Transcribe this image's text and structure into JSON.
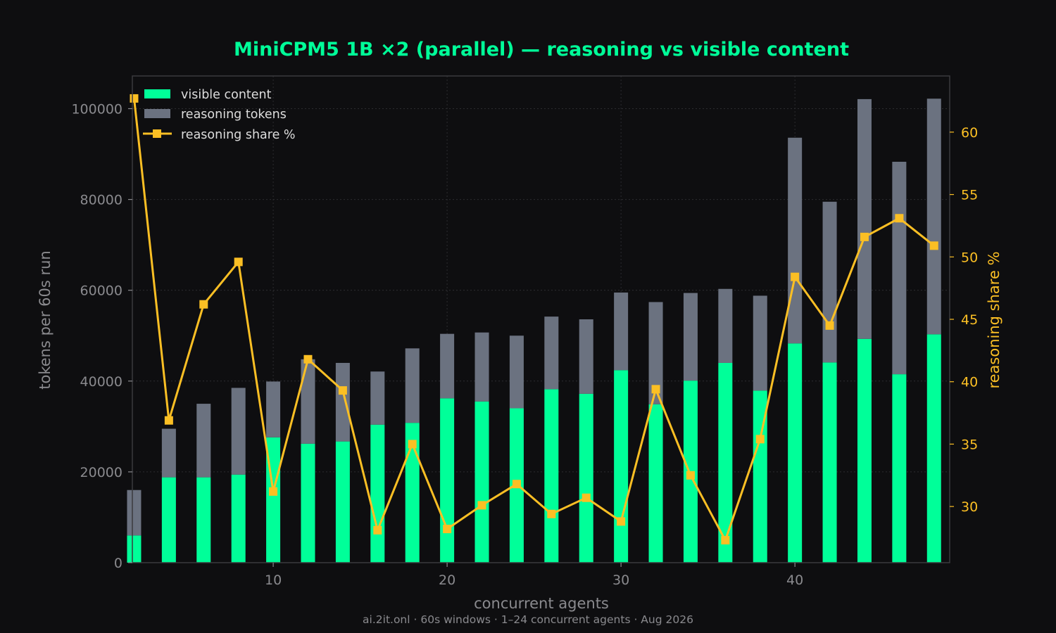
{
  "colors": {
    "background": "#0e0e10",
    "plot_border": "#3a3a3e",
    "grid": "#2c2c30",
    "visible": "#00ff99",
    "reasoning": "#6b7280",
    "share_line": "#fbbf24",
    "title": "#00ff99",
    "left_axis_text": "#8a8a8e",
    "right_axis_text": "#fbbf24",
    "legend_text": "#dddddd",
    "footnote": "#8a8a8e"
  },
  "chart_data": {
    "type": "bar",
    "title": "MiniCPM5 1B ×2 (parallel) — reasoning vs visible content",
    "xlabel": "concurrent agents",
    "ylabel": "tokens per 60s run",
    "y2label": "reasoning share %",
    "footnote": "ai.2it.onl · 60s windows · 1–24 concurrent agents · Aug 2026",
    "x": [
      2,
      4,
      6,
      8,
      10,
      12,
      14,
      16,
      18,
      20,
      22,
      24,
      26,
      28,
      30,
      32,
      34,
      36,
      38,
      40,
      42,
      44,
      46,
      48
    ],
    "xlim": [
      1.9,
      48.9
    ],
    "ylim": [
      0,
      107200
    ],
    "y2lim": [
      25.5,
      64.5
    ],
    "x_ticks": [
      10,
      20,
      30,
      40
    ],
    "y_ticks": [
      0,
      20000,
      40000,
      60000,
      80000,
      100000
    ],
    "y2_ticks": [
      30,
      35,
      40,
      45,
      50,
      55,
      60
    ],
    "grid": true,
    "legend_position": "top-left",
    "series": [
      {
        "name": "visible content",
        "kind": "bar",
        "values": [
          6000,
          18800,
          18800,
          19400,
          27600,
          26200,
          26700,
          30400,
          30800,
          36200,
          35500,
          34000,
          38200,
          37200,
          42400,
          34900,
          40100,
          44000,
          37900,
          48300,
          44100,
          49300,
          41500,
          50300
        ]
      },
      {
        "name": "reasoning tokens",
        "kind": "bar-stacked",
        "values": [
          10000,
          10700,
          16200,
          19100,
          12300,
          18600,
          17300,
          11700,
          16400,
          14200,
          15200,
          16000,
          16000,
          16400,
          17100,
          22500,
          19300,
          16300,
          20900,
          45300,
          35400,
          52800,
          46800,
          51900
        ]
      },
      {
        "name": "reasoning share %",
        "kind": "line",
        "axis": "right",
        "values": [
          62.7,
          36.9,
          46.2,
          49.6,
          31.2,
          41.8,
          39.3,
          28.1,
          35.0,
          28.2,
          30.1,
          31.8,
          29.4,
          30.7,
          28.8,
          39.4,
          32.5,
          27.3,
          35.4,
          48.4,
          44.5,
          51.6,
          53.1,
          50.9
        ]
      }
    ]
  }
}
